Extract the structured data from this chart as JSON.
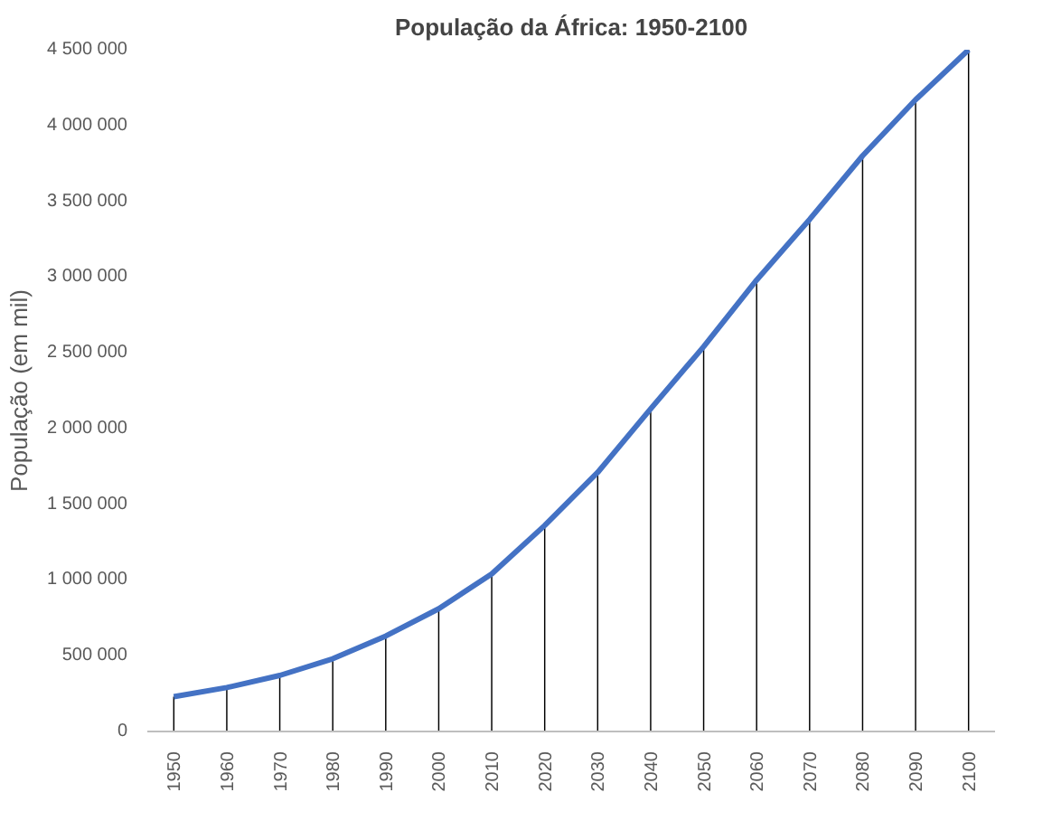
{
  "chart_data": {
    "type": "line",
    "title": "População da África: 1950-2100",
    "ylabel": "População (em mil)",
    "categories": [
      "1950",
      "1960",
      "1970",
      "1980",
      "1990",
      "2000",
      "2010",
      "2020",
      "2030",
      "2040",
      "2050",
      "2060",
      "2070",
      "2080",
      "2090",
      "2100"
    ],
    "series": [
      {
        "type": "bar",
        "color": "#000000",
        "values": [
          230000,
          290000,
          370000,
          480000,
          630000,
          810000,
          1040000,
          1360000,
          1710000,
          2130000,
          2540000,
          2980000,
          3380000,
          3800000,
          4170000,
          4500000
        ]
      },
      {
        "color": "#4472c4",
        "values": [
          230000,
          290000,
          370000,
          480000,
          630000,
          810000,
          1040000,
          1360000,
          1710000,
          2130000,
          2540000,
          2980000,
          3380000,
          3800000,
          4170000,
          4500000
        ]
      }
    ],
    "ylim": [
      0,
      4500000
    ],
    "yticks": [
      0,
      {
        "value": 500000,
        "label": "500 000"
      },
      {
        "value": 1000000,
        "label": "1 000 000"
      },
      {
        "value": 1500000,
        "label": "1 500 000"
      },
      {
        "value": 2000000,
        "label": "2 000 000"
      },
      {
        "value": 2500000,
        "label": "2 500 000"
      },
      {
        "value": 3000000,
        "label": "3 000 000"
      },
      {
        "value": 3500000,
        "label": "3 500 000"
      },
      {
        "value": 4000000,
        "label": "4 000 000"
      },
      {
        "value": 4500000,
        "label": "4 500 000"
      }
    ]
  }
}
